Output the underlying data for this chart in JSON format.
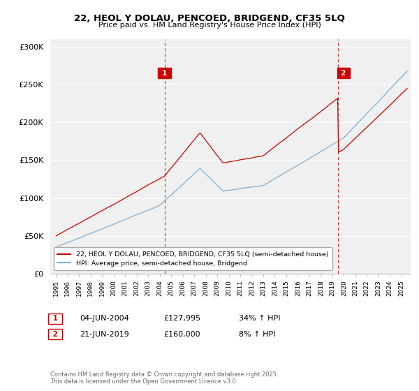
{
  "title_line1": "22, HEOL Y DOLAU, PENCOED, BRIDGEND, CF35 5LQ",
  "title_line2": "Price paid vs. HM Land Registry's House Price Index (HPI)",
  "ylim": [
    0,
    310000
  ],
  "yticks": [
    0,
    50000,
    100000,
    150000,
    200000,
    250000,
    300000
  ],
  "ytick_labels": [
    "£0",
    "£50K",
    "£100K",
    "£150K",
    "£200K",
    "£250K",
    "£300K"
  ],
  "legend_label_red": "22, HEOL Y DOLAU, PENCOED, BRIDGEND, CF35 5LQ (semi-detached house)",
  "legend_label_blue": "HPI: Average price, semi-detached house, Bridgend",
  "sale1_date": "04-JUN-2004",
  "sale1_price": "£127,995",
  "sale1_hpi": "34% ↑ HPI",
  "sale2_date": "21-JUN-2019",
  "sale2_price": "£160,000",
  "sale2_hpi": "8% ↑ HPI",
  "red_color": "#cc0000",
  "blue_color": "#7bafd4",
  "vline_color": "#cc0000",
  "bg_color": "#f0f0f0",
  "grid_color": "#ffffff",
  "footnote": "Contains HM Land Registry data © Crown copyright and database right 2025.\nThis data is licensed under the Open Government Licence v3.0.",
  "sale1_year": 2004.42,
  "sale2_year": 2019.47,
  "marker1_label": "1",
  "marker2_label": "2"
}
